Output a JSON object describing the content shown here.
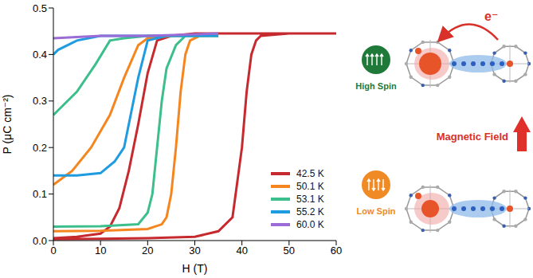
{
  "chart_data": {
    "type": "line",
    "x_label": "H (T)",
    "y_label": "P (μC cm⁻²)",
    "xlim": [
      0,
      60
    ],
    "xticks": [
      0,
      10,
      20,
      30,
      40,
      50,
      60
    ],
    "ylim": [
      0,
      0.5
    ],
    "yticks": [
      {
        "value": 0,
        "label": "0.0"
      },
      0.1,
      0.2,
      0.3,
      0.4,
      0.5
    ],
    "grid": false,
    "legend": "lower right",
    "series": [
      {
        "name": "42.5 K",
        "color": "#c62a2f",
        "x": [
          0,
          10,
          20,
          30,
          35,
          38,
          40,
          41,
          42,
          43,
          44,
          50,
          60,
          50,
          40,
          30,
          25,
          22,
          20,
          18,
          16,
          14,
          12,
          10,
          5,
          0
        ],
        "values": [
          0.003,
          0.004,
          0.005,
          0.008,
          0.02,
          0.05,
          0.2,
          0.32,
          0.4,
          0.43,
          0.44,
          0.445,
          0.445,
          0.445,
          0.445,
          0.445,
          0.44,
          0.43,
          0.36,
          0.25,
          0.15,
          0.07,
          0.03,
          0.015,
          0.008,
          0.005
        ]
      },
      {
        "name": "50.1 K",
        "color": "#f5861f",
        "x": [
          0,
          10,
          20,
          23,
          24,
          25,
          26,
          27,
          28,
          29,
          31,
          35,
          30,
          25,
          20,
          18,
          15,
          12,
          8,
          4,
          0
        ],
        "values": [
          0.02,
          0.021,
          0.025,
          0.035,
          0.05,
          0.1,
          0.2,
          0.32,
          0.4,
          0.43,
          0.44,
          0.44,
          0.44,
          0.44,
          0.435,
          0.42,
          0.35,
          0.27,
          0.2,
          0.15,
          0.12
        ]
      },
      {
        "name": "53.1 K",
        "color": "#3cbf8c",
        "x": [
          0,
          10,
          18,
          20,
          21,
          22,
          23,
          24,
          26,
          28,
          35,
          25,
          20,
          15,
          12,
          9,
          5,
          1,
          0
        ],
        "values": [
          0.03,
          0.031,
          0.035,
          0.06,
          0.1,
          0.2,
          0.3,
          0.37,
          0.42,
          0.44,
          0.44,
          0.44,
          0.44,
          0.435,
          0.43,
          0.38,
          0.32,
          0.28,
          0.27
        ]
      },
      {
        "name": "55.2 K",
        "color": "#1f9be0",
        "x": [
          0,
          5,
          10,
          13,
          15,
          17,
          18,
          20,
          24,
          35,
          25,
          15,
          10,
          5,
          1,
          0
        ],
        "values": [
          0.14,
          0.14,
          0.145,
          0.17,
          0.2,
          0.3,
          0.35,
          0.43,
          0.44,
          0.44,
          0.44,
          0.44,
          0.44,
          0.43,
          0.41,
          0.4
        ]
      },
      {
        "name": "60.0 K",
        "color": "#9b6bd6",
        "x": [
          0,
          10,
          20,
          35
        ],
        "values": [
          0.435,
          0.44,
          0.44,
          0.445
        ]
      }
    ]
  },
  "diagram": {
    "electron_transfer": "e⁻",
    "stimulus": "Magnetic Field",
    "states": [
      {
        "label": "High Spin",
        "color": "#1f7a3a"
      },
      {
        "label": "Low Spin",
        "color": "#f08a24"
      }
    ]
  }
}
